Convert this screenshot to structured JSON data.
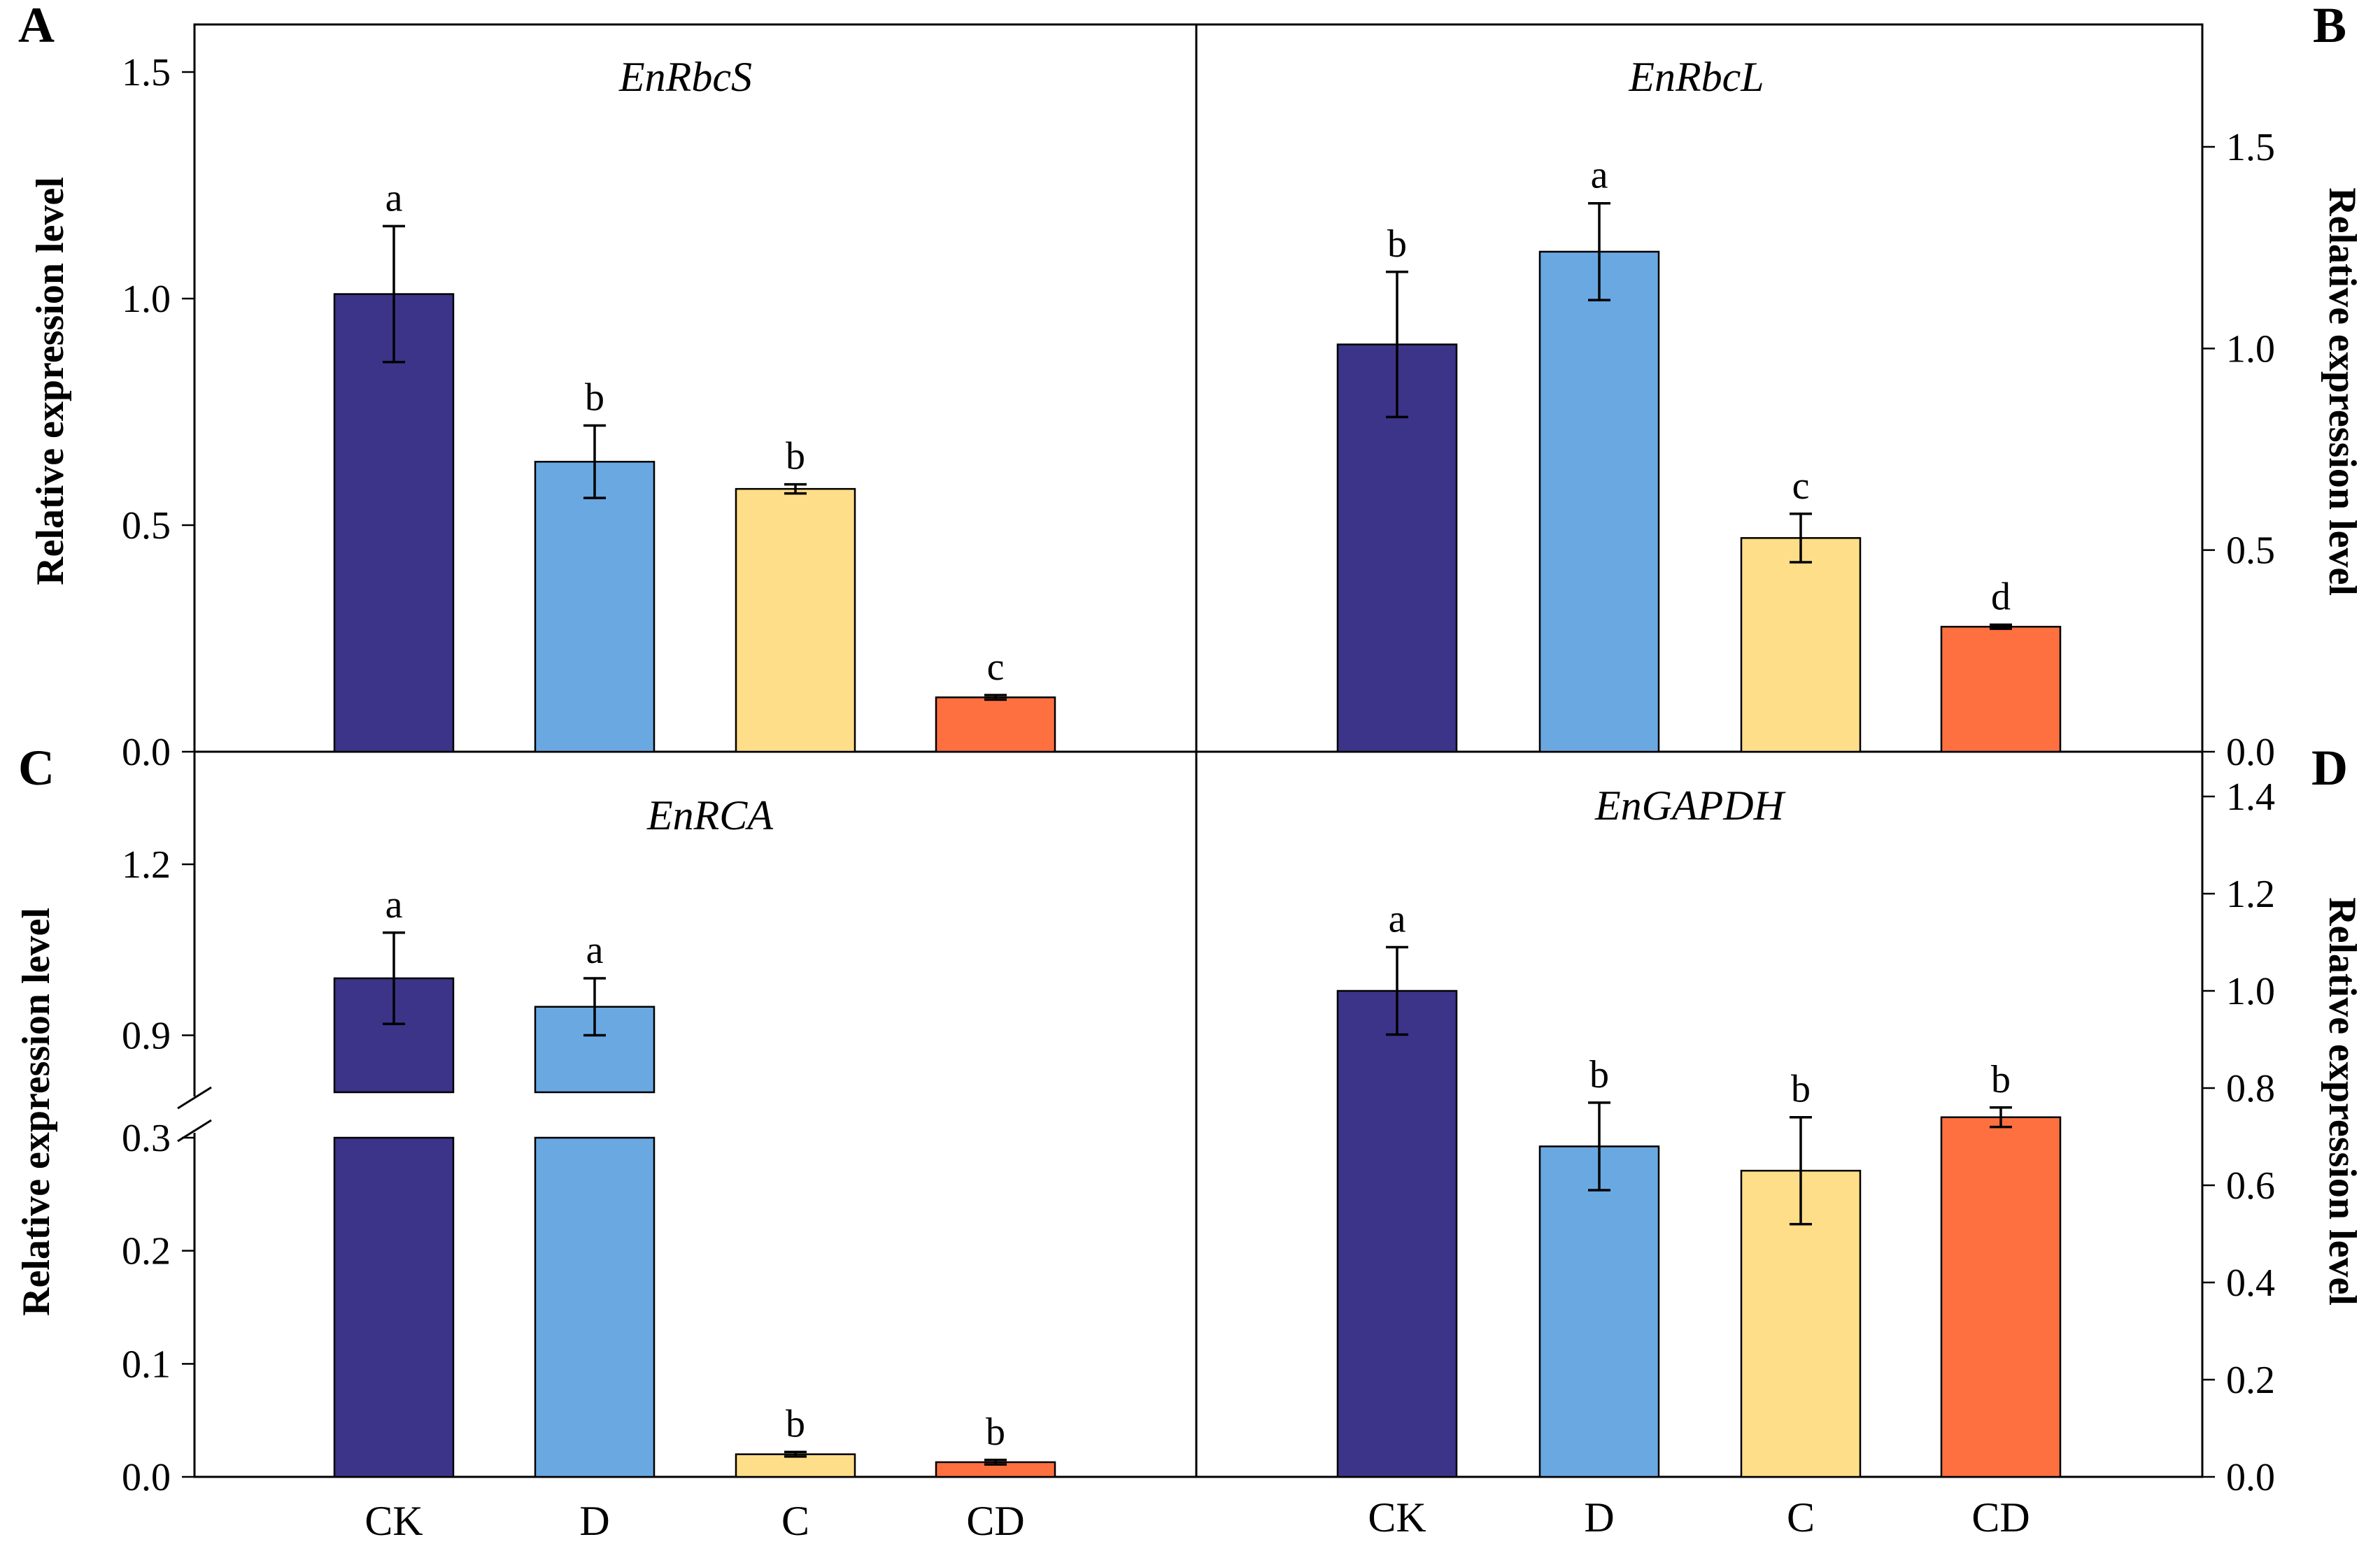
{
  "figure": {
    "categories": [
      "CK",
      "D",
      "C",
      "CD"
    ],
    "colors": [
      "#3c3489",
      "#6aa8e2",
      "#fede88",
      "#ff7040"
    ],
    "ylabel": "Relative expression level"
  },
  "chart_data": [
    {
      "panel": "A",
      "type": "bar",
      "title": "EnRbcS",
      "ylabel": "Relative expression level",
      "categories": [
        "CK",
        "D",
        "C",
        "CD"
      ],
      "values": [
        1.01,
        0.64,
        0.58,
        0.12
      ],
      "errors": [
        0.15,
        0.08,
        0.01,
        0.005
      ],
      "letters": [
        "a",
        "b",
        "b",
        "c"
      ],
      "ylim": [
        0,
        1.5
      ],
      "yticks": [
        "0.0",
        "0.5",
        "1.0",
        "1.5"
      ]
    },
    {
      "panel": "B",
      "type": "bar",
      "title": "EnRbcL",
      "ylabel": "Relative expression level",
      "categories": [
        "CK",
        "D",
        "C",
        "CD"
      ],
      "values": [
        1.01,
        1.24,
        0.53,
        0.31
      ],
      "errors": [
        0.18,
        0.12,
        0.06,
        0.005
      ],
      "letters": [
        "b",
        "a",
        "c",
        "d"
      ],
      "ylim": [
        0,
        1.5
      ],
      "yticks": [
        "0.0",
        "0.5",
        "1.0",
        "1.5"
      ]
    },
    {
      "panel": "C",
      "type": "bar",
      "title": "EnRCA",
      "ylabel": "Relative expression level",
      "categories": [
        "CK",
        "D",
        "C",
        "CD"
      ],
      "values": [
        1.0,
        0.95,
        0.02,
        0.013
      ],
      "errors": [
        0.08,
        0.05,
        0.002,
        0.002
      ],
      "letters": [
        "a",
        "a",
        "b",
        "b"
      ],
      "axis_break": [
        0.3,
        0.8
      ],
      "ylim": [
        0,
        1.3
      ],
      "yticks": [
        "0.0",
        "0.1",
        "0.2",
        "0.3",
        "0.9",
        "1.2"
      ]
    },
    {
      "panel": "D",
      "type": "bar",
      "title": "EnGAPDH",
      "ylabel": "Relative expression level",
      "categories": [
        "CK",
        "D",
        "C",
        "CD"
      ],
      "values": [
        1.0,
        0.68,
        0.63,
        0.74
      ],
      "errors": [
        0.09,
        0.09,
        0.11,
        0.02
      ],
      "letters": [
        "a",
        "b",
        "b",
        "b"
      ],
      "ylim": [
        0,
        1.45
      ],
      "yticks": [
        "0.0",
        "0.2",
        "0.4",
        "0.6",
        "0.8",
        "1.0",
        "1.2",
        "1.4"
      ]
    }
  ]
}
